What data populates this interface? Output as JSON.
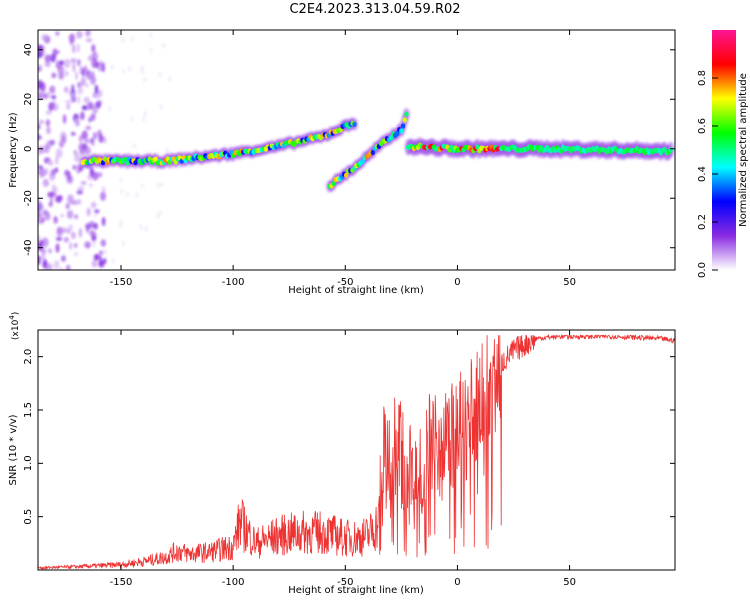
{
  "title": "C2E4.2023.313.04.59.R02",
  "chart_data": [
    {
      "type": "heatmap",
      "xlabel": "Height of straight line (km)",
      "ylabel": "Frequency (Hz)",
      "xlim": [
        -187,
        97
      ],
      "ylim": [
        -49,
        48
      ],
      "x_ticks": [
        -150,
        -100,
        -50,
        0,
        50
      ],
      "y_ticks": [
        -40,
        -20,
        0,
        20,
        40
      ],
      "colorbar": {
        "label": "Normalized spectral amplitude",
        "range": [
          0,
          1
        ],
        "ticks": [
          "0.0",
          "0.2",
          "0.4",
          "0.6",
          "0.8"
        ],
        "colors": [
          "#ffffff",
          "#8a2be2",
          "#0000ff",
          "#00ffff",
          "#00ff00",
          "#ffff00",
          "#ff0000",
          "#ff1493"
        ]
      },
      "ridges": [
        {
          "name": "",
          "points": [
            [
              -167,
              -5
            ],
            [
              -130,
              -5
            ],
            [
              -100,
              -2
            ],
            [
              -80,
              1
            ],
            [
              -60,
              5
            ],
            [
              -45,
              11
            ]
          ]
        },
        {
          "name": "",
          "points": [
            [
              -57,
              -15
            ],
            [
              -45,
              -7
            ],
            [
              -35,
              1
            ],
            [
              -25,
              8
            ],
            [
              -22,
              15
            ]
          ]
        },
        {
          "name": "",
          "points": [
            [
              -22,
              1
            ],
            [
              0,
              0
            ],
            [
              40,
              0
            ],
            [
              96,
              -1
            ]
          ]
        }
      ]
    },
    {
      "type": "line",
      "xlabel": "Height of straight line (km)",
      "ylabel": "SNR (10 * v/v)",
      "y_multiplier": "(x10",
      "y_multiplier_exp": "4",
      "y_multiplier_close": ")",
      "xlim": [
        -187,
        97
      ],
      "ylim": [
        0,
        2.25
      ],
      "x_ticks": [
        -150,
        -100,
        -50,
        0,
        50
      ],
      "y_ticks": [
        0.5,
        1.0,
        1.5,
        2.0
      ],
      "y_tick_labels": [
        "0.5",
        "1.0",
        "1.5",
        "2.0"
      ],
      "color": "#ee3333",
      "x": [
        -187,
        -170,
        -150,
        -140,
        -130,
        -125,
        -120,
        -110,
        -100,
        -97,
        -90,
        -80,
        -70,
        -60,
        -50,
        -45,
        -40,
        -35,
        -33,
        -30,
        -25,
        -20,
        -15,
        -10,
        -5,
        0,
        5,
        10,
        15,
        20,
        25,
        30,
        35,
        40,
        45,
        50,
        60,
        70,
        80,
        90,
        97
      ],
      "y": [
        0.02,
        0.03,
        0.05,
        0.08,
        0.12,
        0.18,
        0.15,
        0.17,
        0.22,
        0.45,
        0.25,
        0.32,
        0.35,
        0.35,
        0.3,
        0.3,
        0.32,
        0.45,
        1.0,
        1.2,
        1.1,
        0.9,
        1.05,
        1.2,
        1.2,
        1.3,
        1.4,
        1.55,
        1.75,
        1.95,
        2.05,
        2.12,
        2.17,
        2.18,
        2.19,
        2.19,
        2.19,
        2.19,
        2.18,
        2.17,
        2.15
      ]
    }
  ]
}
